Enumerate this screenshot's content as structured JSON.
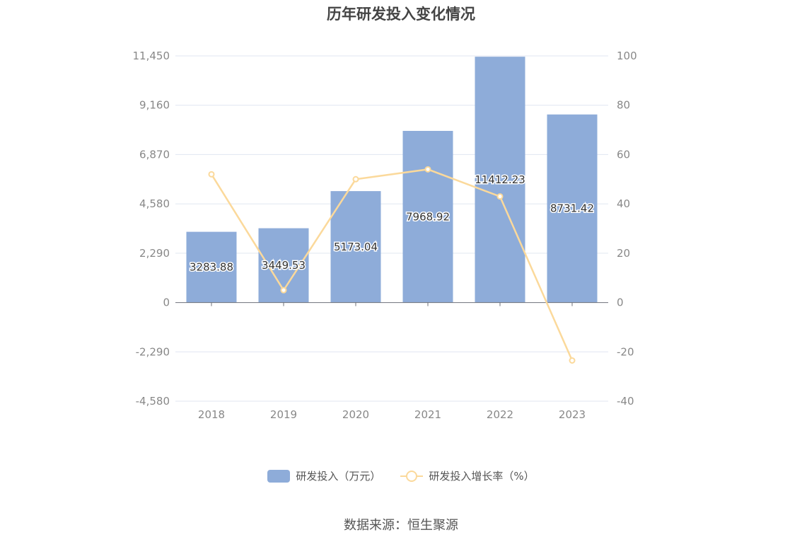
{
  "chart_data": {
    "type": "bar",
    "title": "历年研发投入变化情况",
    "categories": [
      "2018",
      "2019",
      "2020",
      "2021",
      "2022",
      "2023"
    ],
    "series": [
      {
        "name": "研发投入（万元）",
        "type": "bar",
        "axis": "left",
        "color": "#8eacd9",
        "values": [
          3283.88,
          3449.53,
          5173.04,
          7968.92,
          11412.23,
          8731.42
        ],
        "labels": [
          "3283.88",
          "3449.53",
          "5173.04",
          "7968.92",
          "11412.23",
          "8731.42"
        ]
      },
      {
        "name": "研发投入增长率（%）",
        "type": "line",
        "axis": "right",
        "color": "#fbd99b",
        "values": [
          52,
          5,
          50,
          54,
          43,
          -23.5
        ]
      }
    ],
    "y_left": {
      "ylim": [
        -4580,
        11450
      ],
      "ticks": [
        11450,
        9160,
        6870,
        4580,
        2290,
        0,
        -2290,
        -4580
      ],
      "tick_labels": [
        "11,450",
        "9,160",
        "6,870",
        "4,580",
        "2,290",
        "0",
        "-2,290",
        "-4,580"
      ]
    },
    "y_right": {
      "ylim": [
        -40,
        100
      ],
      "ticks": [
        100,
        80,
        60,
        40,
        20,
        0,
        -20,
        -40
      ],
      "tick_labels": [
        "100",
        "80",
        "60",
        "40",
        "20",
        "0",
        "-20",
        "-40"
      ]
    },
    "grid": true,
    "legend_position": "bottom"
  },
  "source_text": "数据来源：恒生聚源"
}
